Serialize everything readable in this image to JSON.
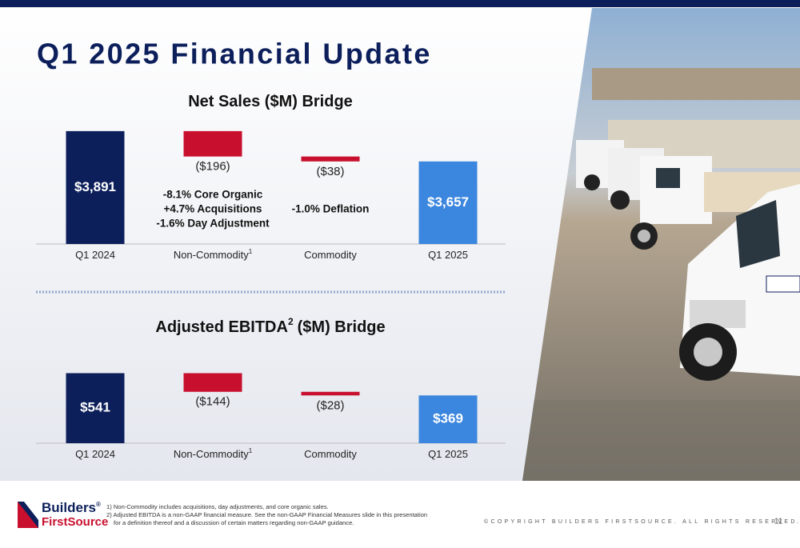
{
  "page": {
    "title": "Q1 2025 Financial Update",
    "footnotes": [
      "1) Non-Commodity includes acquisitions, day adjustments, and core organic sales.",
      "2) Adjusted EBITDA is a non-GAAP financial measure. See the non-GAAP Financial Measures slide in this presentation for a definition thereof and a discussion of certain matters regarding non-GAAP guidance."
    ],
    "copyright": "©COPYRIGHT BUILDERS FIRSTSOURCE. ALL RIGHTS RESERVED.",
    "page_number": 11,
    "logo": {
      "line1": "Builders",
      "mark": "®",
      "line2": "FirstSource"
    }
  },
  "chart_data": [
    {
      "type": "waterfall",
      "title": "Net Sales ($M) Bridge",
      "categories": [
        "Q1 2024",
        "Non-Commodity",
        "Commodity",
        "Q1 2025"
      ],
      "category_notes": [
        null,
        "1",
        null,
        null
      ],
      "values": [
        3891,
        -196,
        -38,
        3657
      ],
      "value_labels": [
        "$3,891",
        "($196)",
        "($38)",
        "$3,657"
      ],
      "totals": [
        true,
        false,
        false,
        true
      ],
      "colors": [
        "#0c1f5b",
        "#c8102e",
        "#c8102e",
        "#3b86de"
      ],
      "annotations": [
        null,
        [
          "-8.1% Core Organic",
          "+4.7% Acquisitions",
          "-1.6% Day Adjustment"
        ],
        [
          "-1.0% Deflation"
        ],
        null
      ],
      "ylim": [
        3020,
        3915
      ]
    },
    {
      "type": "waterfall",
      "title": "Adjusted EBITDA",
      "title_note": "2",
      "title_suffix": "($M) Bridge",
      "categories": [
        "Q1 2024",
        "Non-Commodity",
        "Commodity",
        "Q1 2025"
      ],
      "category_notes": [
        null,
        "1",
        null,
        null
      ],
      "values": [
        541,
        -144,
        -28,
        369
      ],
      "value_labels": [
        "$541",
        "($144)",
        "($28)",
        "$369"
      ],
      "totals": [
        true,
        false,
        false,
        true
      ],
      "colors": [
        "#0c1f5b",
        "#c8102e",
        "#c8102e",
        "#3b86de"
      ],
      "ylim": [
        0,
        550
      ]
    }
  ]
}
